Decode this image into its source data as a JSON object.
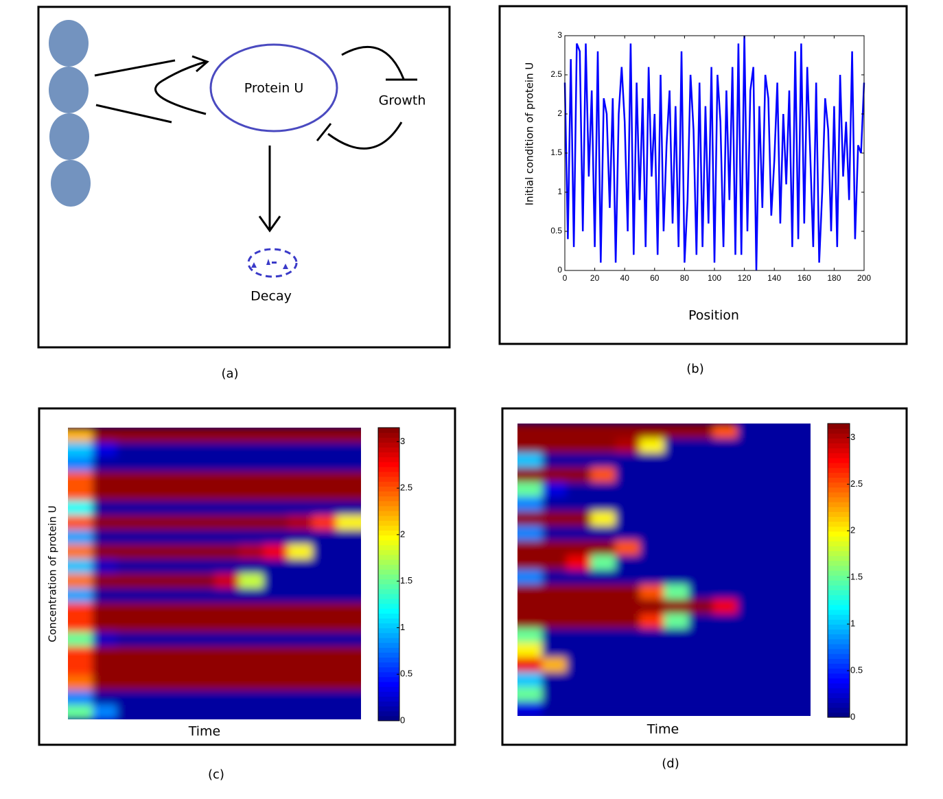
{
  "diagram": {
    "protein_label": "Protein U",
    "growth_label": "Growth",
    "decay_label": "Decay"
  },
  "captions": [
    "(a)",
    "(b)",
    "(c)",
    "(d)"
  ],
  "chart_data": [
    {
      "type": "line",
      "xlabel": "Position",
      "ylabel": "Initial condition of  protein U",
      "color": "#0000ff",
      "x": [
        0,
        2,
        4,
        6,
        8,
        10,
        12,
        14,
        16,
        18,
        20,
        22,
        24,
        26,
        28,
        30,
        32,
        34,
        36,
        38,
        40,
        42,
        44,
        46,
        48,
        50,
        52,
        54,
        56,
        58,
        60,
        62,
        64,
        66,
        68,
        70,
        72,
        74,
        76,
        78,
        80,
        82,
        84,
        86,
        88,
        90,
        92,
        94,
        96,
        98,
        100,
        102,
        104,
        106,
        108,
        110,
        112,
        114,
        116,
        118,
        120,
        122,
        124,
        126,
        128,
        130,
        132,
        134,
        136,
        138,
        140,
        142,
        144,
        146,
        148,
        150,
        152,
        154,
        156,
        158,
        160,
        162,
        164,
        166,
        168,
        170,
        172,
        174,
        176,
        178,
        180,
        182,
        184,
        186,
        188,
        190,
        192,
        194,
        196,
        198,
        200
      ],
      "values": [
        2.4,
        0.4,
        2.7,
        0.3,
        2.9,
        2.8,
        0.5,
        2.9,
        1.2,
        2.3,
        0.3,
        2.8,
        0.1,
        2.2,
        2.0,
        0.8,
        2.2,
        0.1,
        2.0,
        2.6,
        1.9,
        0.5,
        2.9,
        0.2,
        2.4,
        0.9,
        2.2,
        0.3,
        2.6,
        1.2,
        2.0,
        0.2,
        2.5,
        0.5,
        1.6,
        2.3,
        0.6,
        2.1,
        0.3,
        2.8,
        0.1,
        0.9,
        2.5,
        1.8,
        0.2,
        2.4,
        0.3,
        2.1,
        0.6,
        2.6,
        0.1,
        2.5,
        1.9,
        0.3,
        2.3,
        0.9,
        2.6,
        0.2,
        2.9,
        0.2,
        3.0,
        0.5,
        2.3,
        2.6,
        0.0,
        2.1,
        0.8,
        2.5,
        2.2,
        0.7,
        1.4,
        2.4,
        0.6,
        2.0,
        1.1,
        2.3,
        0.3,
        2.8,
        0.4,
        2.9,
        0.6,
        2.6,
        1.5,
        0.3,
        2.4,
        0.1,
        1.0,
        2.2,
        1.8,
        0.5,
        2.1,
        0.3,
        2.5,
        1.2,
        1.9,
        0.9,
        2.8,
        0.4,
        1.6,
        1.5,
        2.4
      ],
      "xlim": [
        0,
        200
      ],
      "xticks": [
        0,
        20,
        40,
        60,
        80,
        100,
        120,
        140,
        160,
        180,
        200
      ],
      "ylim": [
        0,
        3
      ],
      "yticks": [
        0,
        0.5,
        1,
        1.5,
        2,
        2.5,
        3
      ]
    },
    {
      "type": "heatmap",
      "xlabel": "Time",
      "ylabel": "Concentration of protein U",
      "colormap": "jet",
      "zlim": [
        0,
        3.15
      ],
      "cticks": [
        0,
        0.5,
        1,
        1.5,
        2,
        2.5,
        3
      ],
      "z": [
        [
          2.2,
          3.1,
          3.1,
          3.1,
          3.1,
          3.1,
          3.1,
          3.1,
          3.1,
          3.1,
          3.1,
          3.1
        ],
        [
          1.0,
          0.3,
          0.1,
          0.1,
          0.1,
          0.1,
          0.1,
          0.1,
          0.1,
          0.1,
          0.1,
          0.1
        ],
        [
          0.8,
          0.1,
          0.1,
          0.1,
          0.1,
          0.1,
          0.1,
          0.1,
          0.1,
          0.1,
          0.1,
          0.1
        ],
        [
          2.5,
          3.1,
          3.1,
          3.1,
          3.1,
          3.1,
          3.1,
          3.1,
          3.1,
          3.1,
          3.1,
          3.1
        ],
        [
          2.5,
          3.1,
          3.1,
          3.1,
          3.1,
          3.1,
          3.1,
          3.1,
          3.1,
          3.1,
          3.1,
          3.1
        ],
        [
          1.2,
          0.1,
          0.1,
          0.1,
          0.1,
          0.1,
          0.1,
          0.1,
          0.1,
          0.1,
          0.1,
          0.1
        ],
        [
          2.5,
          3.1,
          3.1,
          3.1,
          3.1,
          3.1,
          3.1,
          3.1,
          3.1,
          3.0,
          2.6,
          2.0
        ],
        [
          0.9,
          0.1,
          0.1,
          0.1,
          0.1,
          0.1,
          0.1,
          0.1,
          0.1,
          0.1,
          0.1,
          0.1
        ],
        [
          2.4,
          3.1,
          3.1,
          3.1,
          3.1,
          3.1,
          3.1,
          3.0,
          2.8,
          2.0,
          0.1,
          0.1
        ],
        [
          1.0,
          0.2,
          0.1,
          0.1,
          0.1,
          0.1,
          0.1,
          0.1,
          0.1,
          0.1,
          0.1,
          0.1
        ],
        [
          2.4,
          3.1,
          3.1,
          3.1,
          3.1,
          3.1,
          2.9,
          1.8,
          0.1,
          0.1,
          0.1,
          0.1
        ],
        [
          0.9,
          0.1,
          0.1,
          0.1,
          0.1,
          0.1,
          0.1,
          0.1,
          0.1,
          0.1,
          0.1,
          0.1
        ],
        [
          2.6,
          3.1,
          3.1,
          3.1,
          3.1,
          3.1,
          3.1,
          3.1,
          3.1,
          3.1,
          3.1,
          3.1
        ],
        [
          2.6,
          3.1,
          3.1,
          3.1,
          3.1,
          3.1,
          3.1,
          3.1,
          3.1,
          3.1,
          3.1,
          3.1
        ],
        [
          1.5,
          0.2,
          0.1,
          0.1,
          0.1,
          0.1,
          0.1,
          0.1,
          0.1,
          0.1,
          0.1,
          0.1
        ],
        [
          2.6,
          3.1,
          3.1,
          3.1,
          3.1,
          3.1,
          3.1,
          3.1,
          3.1,
          3.1,
          3.1,
          3.1
        ],
        [
          2.6,
          3.1,
          3.1,
          3.1,
          3.1,
          3.1,
          3.1,
          3.1,
          3.1,
          3.1,
          3.1,
          3.1
        ],
        [
          2.4,
          3.1,
          3.1,
          3.1,
          3.1,
          3.1,
          3.1,
          3.1,
          3.1,
          3.1,
          3.1,
          3.1
        ],
        [
          0.8,
          0.1,
          0.1,
          0.1,
          0.1,
          0.1,
          0.1,
          0.1,
          0.1,
          0.1,
          0.1,
          0.1
        ],
        [
          1.5,
          0.8,
          0.1,
          0.1,
          0.1,
          0.1,
          0.1,
          0.1,
          0.1,
          0.1,
          0.1,
          0.1
        ]
      ]
    },
    {
      "type": "heatmap",
      "xlabel": "Time",
      "colormap": "jet",
      "zlim": [
        0,
        3.15
      ],
      "cticks": [
        0,
        0.5,
        1,
        1.5,
        2,
        2.5,
        3
      ],
      "z": [
        [
          3.1,
          3.1,
          3.1,
          3.1,
          3.1,
          3.1,
          3.1,
          3.1,
          2.5,
          0.1,
          0.1,
          0.1
        ],
        [
          3.1,
          3.1,
          3.1,
          3.1,
          3.0,
          2.0,
          0.1,
          0.1,
          0.1,
          0.1,
          0.1,
          0.1
        ],
        [
          1.0,
          0.1,
          0.1,
          0.1,
          0.1,
          0.1,
          0.1,
          0.1,
          0.1,
          0.1,
          0.1,
          0.1
        ],
        [
          3.1,
          3.1,
          3.1,
          2.5,
          0.1,
          0.1,
          0.1,
          0.1,
          0.1,
          0.1,
          0.1,
          0.1
        ],
        [
          1.5,
          0.3,
          0.1,
          0.1,
          0.1,
          0.1,
          0.1,
          0.1,
          0.1,
          0.1,
          0.1,
          0.1
        ],
        [
          0.8,
          0.1,
          0.1,
          0.1,
          0.1,
          0.1,
          0.1,
          0.1,
          0.1,
          0.1,
          0.1,
          0.1
        ],
        [
          3.1,
          3.1,
          3.1,
          2.0,
          0.1,
          0.1,
          0.1,
          0.1,
          0.1,
          0.1,
          0.1,
          0.1
        ],
        [
          0.8,
          0.1,
          0.1,
          0.1,
          0.1,
          0.1,
          0.1,
          0.1,
          0.1,
          0.1,
          0.1,
          0.1
        ],
        [
          3.1,
          3.1,
          3.1,
          3.1,
          2.5,
          0.1,
          0.1,
          0.1,
          0.1,
          0.1,
          0.1,
          0.1
        ],
        [
          3.1,
          3.1,
          2.8,
          1.5,
          0.1,
          0.1,
          0.1,
          0.1,
          0.1,
          0.1,
          0.1,
          0.1
        ],
        [
          0.8,
          0.1,
          0.1,
          0.1,
          0.1,
          0.1,
          0.1,
          0.1,
          0.1,
          0.1,
          0.1,
          0.1
        ],
        [
          3.1,
          3.1,
          3.1,
          3.1,
          3.1,
          2.5,
          1.5,
          0.1,
          0.1,
          0.1,
          0.1,
          0.1
        ],
        [
          3.1,
          3.1,
          3.1,
          3.1,
          3.1,
          3.1,
          3.1,
          3.1,
          2.8,
          0.1,
          0.1,
          0.1
        ],
        [
          3.1,
          3.1,
          3.1,
          3.1,
          3.1,
          2.6,
          1.5,
          0.1,
          0.1,
          0.1,
          0.1,
          0.1
        ],
        [
          1.5,
          0.1,
          0.1,
          0.1,
          0.1,
          0.1,
          0.1,
          0.1,
          0.1,
          0.1,
          0.1,
          0.1
        ],
        [
          2.0,
          0.1,
          0.1,
          0.1,
          0.1,
          0.1,
          0.1,
          0.1,
          0.1,
          0.1,
          0.1,
          0.1
        ],
        [
          2.8,
          2.2,
          0.1,
          0.1,
          0.1,
          0.1,
          0.1,
          0.1,
          0.1,
          0.1,
          0.1,
          0.1
        ],
        [
          1.0,
          0.1,
          0.1,
          0.1,
          0.1,
          0.1,
          0.1,
          0.1,
          0.1,
          0.1,
          0.1,
          0.1
        ],
        [
          1.5,
          0.1,
          0.1,
          0.1,
          0.1,
          0.1,
          0.1,
          0.1,
          0.1,
          0.1,
          0.1,
          0.1
        ],
        [
          0.3,
          0.1,
          0.1,
          0.1,
          0.1,
          0.1,
          0.1,
          0.1,
          0.1,
          0.1,
          0.1,
          0.1
        ]
      ]
    }
  ]
}
